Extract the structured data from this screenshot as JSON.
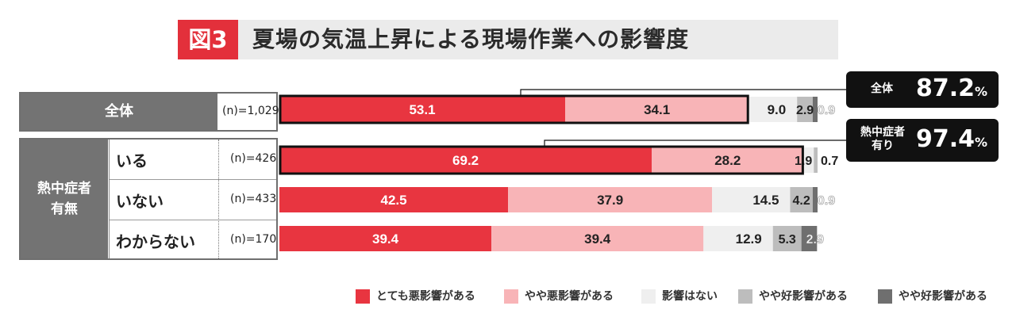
{
  "title": {
    "figure_label": "図3",
    "text": "夏場の気温上昇による現場作業への影響度"
  },
  "table": {
    "overall_label": "全体",
    "group_label_line1": "熱中症者",
    "group_label_line2": "有無",
    "rows": [
      {
        "sub_label": "",
        "n": "(n)=1,029"
      },
      {
        "sub_label": "いる",
        "n": "(n)=426"
      },
      {
        "sub_label": "いない",
        "n": "(n)=433"
      },
      {
        "sub_label": "わからない",
        "n": "(n)=170"
      }
    ]
  },
  "callouts": [
    {
      "label": "全体",
      "value": "87.2",
      "unit": "%"
    },
    {
      "label_line1": "熱中症者",
      "label_line2": "有り",
      "value": "97.4",
      "unit": "%"
    }
  ],
  "legend": [
    {
      "label": "とても悪影響がある",
      "color": "#e83540"
    },
    {
      "label": "やや悪影響がある",
      "color": "#f8b4b7"
    },
    {
      "label": "影響はない",
      "color": "#efefef"
    },
    {
      "label": "やや好影響がある",
      "color": "#bdbdbd"
    },
    {
      "label": "やや好影響がある",
      "color": "#6f6f6f"
    }
  ],
  "chart_data": {
    "type": "bar",
    "orientation": "horizontal",
    "stacked": true,
    "categories": [
      "全体",
      "いる",
      "いない",
      "わからない"
    ],
    "series": [
      {
        "name": "とても悪影響がある",
        "color": "#e83540",
        "values": [
          53.1,
          69.2,
          42.5,
          39.4
        ]
      },
      {
        "name": "やや悪影響がある",
        "color": "#f8b4b7",
        "values": [
          34.1,
          28.2,
          37.9,
          39.4
        ]
      },
      {
        "name": "影響はない",
        "color": "#efefef",
        "values": [
          9.0,
          1.9,
          14.5,
          12.9
        ]
      },
      {
        "name": "やや好影響がある",
        "color": "#bdbdbd",
        "values": [
          2.9,
          0.7,
          4.2,
          5.3
        ]
      },
      {
        "name": "やや好影響がある",
        "color": "#6f6f6f",
        "values": [
          0.9,
          0.0,
          0.9,
          2.9
        ]
      }
    ],
    "data_labels": [
      [
        "53.1",
        "34.1",
        "9.0",
        "2.9",
        "0.9"
      ],
      [
        "69.2",
        "28.2",
        "1.9",
        "0.7",
        ""
      ],
      [
        "42.5",
        "37.9",
        "14.5",
        "4.2",
        "0.9"
      ],
      [
        "39.4",
        "39.4",
        "12.9",
        "5.3",
        "2.9"
      ]
    ],
    "xlim": [
      0,
      100
    ],
    "highlighted_rows": [
      0,
      1
    ],
    "grid": false,
    "legend_position": "bottom"
  }
}
